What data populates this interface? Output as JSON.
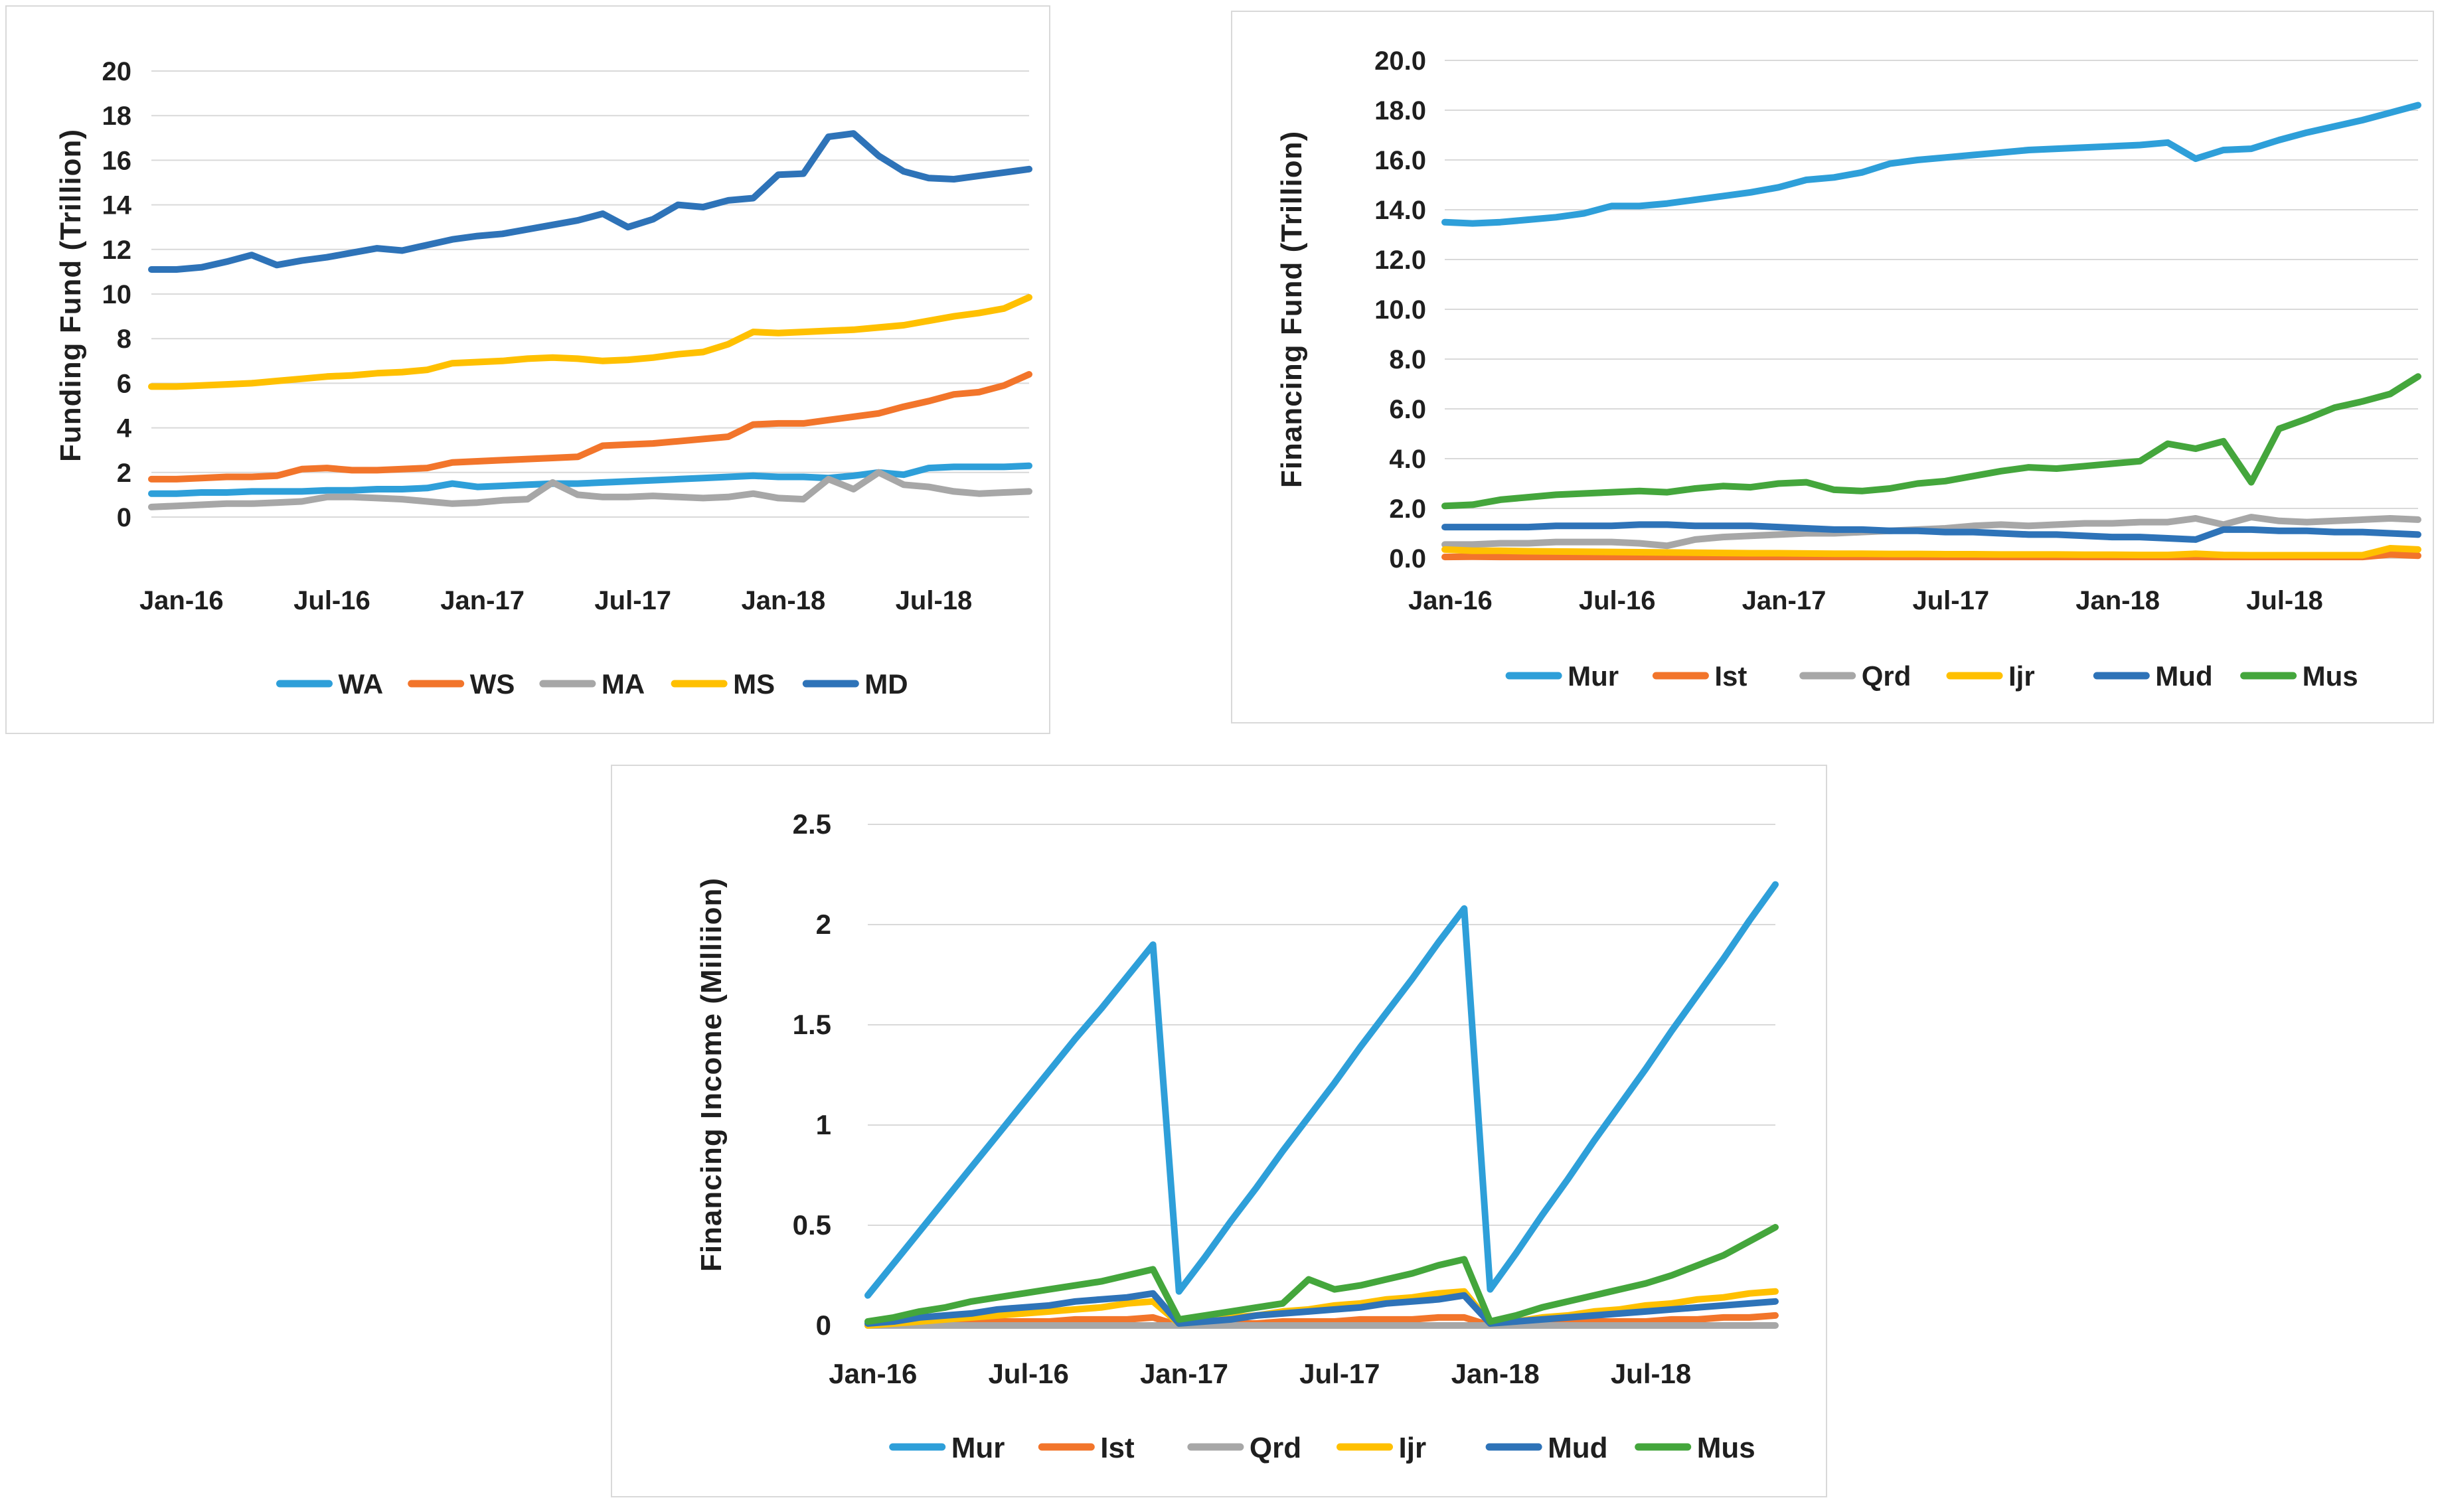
{
  "page": {
    "background": "#ffffff",
    "border_color": "#d9d9d9"
  },
  "palette": {
    "light_blue": "#2E9FD9",
    "orange": "#F2752B",
    "gray": "#A7A7A7",
    "yellow": "#FFC000",
    "dark_blue": "#2E73B8",
    "green": "#44A63C",
    "gridline": "#D9D9D9",
    "text": "#1f1f1f"
  },
  "chart_data": [
    {
      "id": "funding-fund",
      "type": "line",
      "ylabel": "Funding Fund (Trillion)",
      "ylim": [
        0,
        20
      ],
      "y_tick_labels": [
        "0",
        "2",
        "4",
        "6",
        "8",
        "10",
        "12",
        "14",
        "16",
        "18",
        "20"
      ],
      "x_tick_labels": [
        "Jan-16",
        "Jul-16",
        "Jan-17",
        "Jul-17",
        "Jan-18",
        "Jul-18"
      ],
      "x_tick_months": [
        0,
        6,
        12,
        18,
        24,
        30
      ],
      "grid": "horizontal",
      "legend_position": "bottom",
      "categories": [
        "Jan-16",
        "Feb-16",
        "Mar-16",
        "Apr-16",
        "May-16",
        "Jun-16",
        "Jul-16",
        "Aug-16",
        "Sep-16",
        "Oct-16",
        "Nov-16",
        "Dec-16",
        "Jan-17",
        "Feb-17",
        "Mar-17",
        "Apr-17",
        "May-17",
        "Jun-17",
        "Jul-17",
        "Aug-17",
        "Sep-17",
        "Oct-17",
        "Nov-17",
        "Dec-17",
        "Jan-18",
        "Feb-18",
        "Mar-18",
        "Apr-18",
        "May-18",
        "Jun-18",
        "Jul-18",
        "Aug-18",
        "Sep-18",
        "Oct-18",
        "Nov-18",
        "Dec-18"
      ],
      "series": [
        {
          "name": "WA",
          "color": "#2E9FD9",
          "values": [
            1.05,
            1.05,
            1.1,
            1.1,
            1.15,
            1.15,
            1.15,
            1.2,
            1.2,
            1.25,
            1.25,
            1.3,
            1.5,
            1.35,
            1.4,
            1.45,
            1.5,
            1.5,
            1.55,
            1.6,
            1.65,
            1.7,
            1.75,
            1.8,
            1.85,
            1.8,
            1.8,
            1.75,
            1.85,
            2.0,
            1.9,
            2.2,
            2.25,
            2.25,
            2.25,
            2.3
          ]
        },
        {
          "name": "WS",
          "color": "#F2752B",
          "values": [
            1.7,
            1.7,
            1.75,
            1.8,
            1.8,
            1.85,
            2.15,
            2.2,
            2.1,
            2.1,
            2.15,
            2.2,
            2.45,
            2.5,
            2.55,
            2.6,
            2.65,
            2.7,
            3.2,
            3.25,
            3.3,
            3.4,
            3.5,
            3.6,
            4.15,
            4.2,
            4.2,
            4.35,
            4.5,
            4.65,
            4.95,
            5.2,
            5.5,
            5.6,
            5.9,
            6.4
          ]
        },
        {
          "name": "MA",
          "color": "#A7A7A7",
          "values": [
            0.45,
            0.5,
            0.55,
            0.6,
            0.6,
            0.65,
            0.7,
            0.9,
            0.9,
            0.85,
            0.8,
            0.7,
            0.6,
            0.65,
            0.75,
            0.8,
            1.55,
            1.0,
            0.9,
            0.9,
            0.95,
            0.9,
            0.85,
            0.9,
            1.05,
            0.85,
            0.8,
            1.7,
            1.25,
            2.0,
            1.45,
            1.35,
            1.15,
            1.05,
            1.1,
            1.15
          ]
        },
        {
          "name": "MS",
          "color": "#FFC000",
          "values": [
            5.85,
            5.85,
            5.9,
            5.95,
            6.0,
            6.1,
            6.2,
            6.3,
            6.35,
            6.45,
            6.5,
            6.6,
            6.9,
            6.95,
            7.0,
            7.1,
            7.15,
            7.1,
            7.0,
            7.05,
            7.15,
            7.3,
            7.4,
            7.75,
            8.3,
            8.25,
            8.3,
            8.35,
            8.4,
            8.5,
            8.6,
            8.8,
            9.0,
            9.15,
            9.35,
            9.85
          ]
        },
        {
          "name": "MD",
          "color": "#2E73B8",
          "values": [
            11.1,
            11.1,
            11.2,
            11.45,
            11.75,
            11.3,
            11.5,
            11.65,
            11.85,
            12.05,
            11.95,
            12.2,
            12.45,
            12.6,
            12.7,
            12.9,
            13.1,
            13.3,
            13.6,
            13.0,
            13.35,
            14.0,
            13.9,
            14.2,
            14.3,
            15.35,
            15.4,
            17.05,
            17.2,
            16.2,
            15.5,
            15.2,
            15.15,
            15.3,
            15.45,
            15.6
          ]
        }
      ]
    },
    {
      "id": "financing-fund",
      "type": "line",
      "ylabel": "Financing Fund (Trillion)",
      "ylim": [
        0,
        20
      ],
      "y_tick_labels": [
        "0.0",
        "2.0",
        "4.0",
        "6.0",
        "8.0",
        "10.0",
        "12.0",
        "14.0",
        "16.0",
        "18.0",
        "20.0"
      ],
      "x_tick_labels": [
        "Jan-16",
        "Jul-16",
        "Jan-17",
        "Jul-17",
        "Jan-18",
        "Jul-18"
      ],
      "x_tick_months": [
        0,
        6,
        12,
        18,
        24,
        30
      ],
      "grid": "horizontal",
      "legend_position": "bottom",
      "categories": [
        "Jan-16",
        "Feb-16",
        "Mar-16",
        "Apr-16",
        "May-16",
        "Jun-16",
        "Jul-16",
        "Aug-16",
        "Sep-16",
        "Oct-16",
        "Nov-16",
        "Dec-16",
        "Jan-17",
        "Feb-17",
        "Mar-17",
        "Apr-17",
        "May-17",
        "Jun-17",
        "Jul-17",
        "Aug-17",
        "Sep-17",
        "Oct-17",
        "Nov-17",
        "Dec-17",
        "Jan-18",
        "Feb-18",
        "Mar-18",
        "Apr-18",
        "May-18",
        "Jun-18",
        "Jul-18",
        "Aug-18",
        "Sep-18",
        "Oct-18",
        "Nov-18",
        "Dec-18"
      ],
      "series": [
        {
          "name": "Mur",
          "color": "#2E9FD9",
          "values": [
            13.5,
            13.45,
            13.5,
            13.6,
            13.7,
            13.85,
            14.15,
            14.15,
            14.25,
            14.4,
            14.55,
            14.7,
            14.9,
            15.2,
            15.3,
            15.5,
            15.85,
            16.0,
            16.1,
            16.2,
            16.3,
            16.4,
            16.45,
            16.5,
            16.55,
            16.6,
            16.7,
            16.05,
            16.4,
            16.45,
            16.8,
            17.1,
            17.35,
            17.6,
            17.9,
            18.2
          ]
        },
        {
          "name": "Ist",
          "color": "#F2752B",
          "values": [
            0.05,
            0.06,
            0.05,
            0.05,
            0.05,
            0.05,
            0.05,
            0.05,
            0.05,
            0.05,
            0.05,
            0.05,
            0.05,
            0.05,
            0.05,
            0.05,
            0.05,
            0.05,
            0.05,
            0.05,
            0.05,
            0.05,
            0.05,
            0.05,
            0.05,
            0.05,
            0.05,
            0.05,
            0.05,
            0.05,
            0.05,
            0.05,
            0.05,
            0.05,
            0.15,
            0.1
          ]
        },
        {
          "name": "Qrd",
          "color": "#A7A7A7",
          "values": [
            0.55,
            0.55,
            0.6,
            0.6,
            0.65,
            0.65,
            0.65,
            0.6,
            0.5,
            0.75,
            0.85,
            0.9,
            0.95,
            1.0,
            1.0,
            1.05,
            1.1,
            1.15,
            1.2,
            1.3,
            1.35,
            1.3,
            1.35,
            1.4,
            1.4,
            1.45,
            1.45,
            1.6,
            1.35,
            1.65,
            1.5,
            1.45,
            1.5,
            1.55,
            1.6,
            1.55
          ]
        },
        {
          "name": "Ijr",
          "color": "#FFC000",
          "values": [
            0.35,
            0.3,
            0.3,
            0.28,
            0.27,
            0.26,
            0.25,
            0.24,
            0.23,
            0.22,
            0.21,
            0.2,
            0.2,
            0.19,
            0.18,
            0.18,
            0.17,
            0.17,
            0.16,
            0.16,
            0.15,
            0.15,
            0.15,
            0.14,
            0.14,
            0.13,
            0.13,
            0.18,
            0.13,
            0.12,
            0.12,
            0.12,
            0.12,
            0.12,
            0.4,
            0.35
          ]
        },
        {
          "name": "Mud",
          "color": "#2E73B8",
          "values": [
            1.25,
            1.25,
            1.25,
            1.25,
            1.3,
            1.3,
            1.3,
            1.35,
            1.35,
            1.3,
            1.3,
            1.3,
            1.25,
            1.2,
            1.15,
            1.15,
            1.1,
            1.1,
            1.05,
            1.05,
            1.0,
            0.95,
            0.95,
            0.9,
            0.85,
            0.85,
            0.8,
            0.75,
            1.15,
            1.15,
            1.1,
            1.1,
            1.05,
            1.05,
            1.0,
            0.95
          ]
        },
        {
          "name": "Mus",
          "color": "#44A63C",
          "values": [
            2.1,
            2.15,
            2.35,
            2.45,
            2.55,
            2.6,
            2.65,
            2.7,
            2.65,
            2.8,
            2.9,
            2.85,
            3.0,
            3.05,
            2.75,
            2.7,
            2.8,
            3.0,
            3.1,
            3.3,
            3.5,
            3.65,
            3.6,
            3.7,
            3.8,
            3.9,
            4.6,
            4.4,
            4.7,
            3.05,
            5.2,
            5.6,
            6.05,
            6.3,
            6.6,
            7.3
          ]
        }
      ]
    },
    {
      "id": "financing-income",
      "type": "line",
      "ylabel": "Financing Income (Milliion)",
      "ylim": [
        0,
        2.5
      ],
      "y_tick_labels": [
        "0",
        "0.5",
        "1",
        "1.5",
        "2",
        "2.5"
      ],
      "x_tick_labels": [
        "Jan-16",
        "Jul-16",
        "Jan-17",
        "Jul-17",
        "Jan-18",
        "Jul-18"
      ],
      "x_tick_months": [
        0,
        6,
        12,
        18,
        24,
        30
      ],
      "grid": "horizontal",
      "legend_position": "bottom",
      "categories": [
        "Jan-16",
        "Feb-16",
        "Mar-16",
        "Apr-16",
        "May-16",
        "Jun-16",
        "Jul-16",
        "Aug-16",
        "Sep-16",
        "Oct-16",
        "Nov-16",
        "Dec-16",
        "Jan-17",
        "Feb-17",
        "Mar-17",
        "Apr-17",
        "May-17",
        "Jun-17",
        "Jul-17",
        "Aug-17",
        "Sep-17",
        "Oct-17",
        "Nov-17",
        "Dec-17",
        "Jan-18",
        "Feb-18",
        "Mar-18",
        "Apr-18",
        "May-18",
        "Jun-18",
        "Jul-18",
        "Aug-18",
        "Sep-18",
        "Oct-18",
        "Nov-18",
        "Dec-18"
      ],
      "series": [
        {
          "name": "Mur",
          "color": "#2E9FD9",
          "values": [
            0.15,
            0.31,
            0.47,
            0.63,
            0.79,
            0.95,
            1.11,
            1.27,
            1.43,
            1.58,
            1.74,
            1.9,
            0.17,
            0.34,
            0.52,
            0.69,
            0.87,
            1.04,
            1.21,
            1.39,
            1.56,
            1.73,
            1.91,
            2.08,
            0.18,
            0.36,
            0.55,
            0.73,
            0.92,
            1.1,
            1.28,
            1.47,
            1.65,
            1.83,
            2.02,
            2.2
          ]
        },
        {
          "name": "Ist",
          "color": "#F2752B",
          "values": [
            0.0,
            0.0,
            0.01,
            0.01,
            0.01,
            0.02,
            0.02,
            0.02,
            0.03,
            0.03,
            0.03,
            0.04,
            0.0,
            0.01,
            0.01,
            0.01,
            0.02,
            0.02,
            0.02,
            0.03,
            0.03,
            0.03,
            0.04,
            0.04,
            0.0,
            0.01,
            0.01,
            0.01,
            0.02,
            0.02,
            0.02,
            0.03,
            0.03,
            0.04,
            0.04,
            0.05
          ]
        },
        {
          "name": "Qrd",
          "color": "#A7A7A7",
          "values": [
            0,
            0,
            0,
            0,
            0,
            0,
            0,
            0,
            0,
            0,
            0,
            0,
            0,
            0,
            0,
            0,
            0,
            0,
            0,
            0,
            0,
            0,
            0,
            0,
            0,
            0,
            0,
            0,
            0,
            0,
            0,
            0,
            0,
            0,
            0,
            0
          ]
        },
        {
          "name": "Ijr",
          "color": "#FFC000",
          "values": [
            0.0,
            0.01,
            0.02,
            0.03,
            0.04,
            0.05,
            0.06,
            0.07,
            0.08,
            0.09,
            0.11,
            0.12,
            0.01,
            0.02,
            0.04,
            0.05,
            0.07,
            0.08,
            0.1,
            0.11,
            0.13,
            0.14,
            0.16,
            0.17,
            0.01,
            0.02,
            0.04,
            0.05,
            0.07,
            0.08,
            0.1,
            0.11,
            0.13,
            0.14,
            0.16,
            0.17
          ]
        },
        {
          "name": "Mud",
          "color": "#2E73B8",
          "values": [
            0.01,
            0.02,
            0.04,
            0.05,
            0.06,
            0.08,
            0.09,
            0.1,
            0.12,
            0.13,
            0.14,
            0.16,
            0.01,
            0.02,
            0.03,
            0.05,
            0.06,
            0.07,
            0.08,
            0.09,
            0.11,
            0.12,
            0.13,
            0.15,
            0.01,
            0.02,
            0.03,
            0.04,
            0.05,
            0.06,
            0.07,
            0.08,
            0.09,
            0.1,
            0.11,
            0.12
          ]
        },
        {
          "name": "Mus",
          "color": "#44A63C",
          "values": [
            0.02,
            0.04,
            0.07,
            0.09,
            0.12,
            0.14,
            0.16,
            0.18,
            0.2,
            0.22,
            0.25,
            0.28,
            0.03,
            0.05,
            0.07,
            0.09,
            0.11,
            0.23,
            0.18,
            0.2,
            0.23,
            0.26,
            0.3,
            0.33,
            0.02,
            0.05,
            0.09,
            0.12,
            0.15,
            0.18,
            0.21,
            0.25,
            0.3,
            0.35,
            0.42,
            0.49
          ]
        }
      ]
    }
  ]
}
